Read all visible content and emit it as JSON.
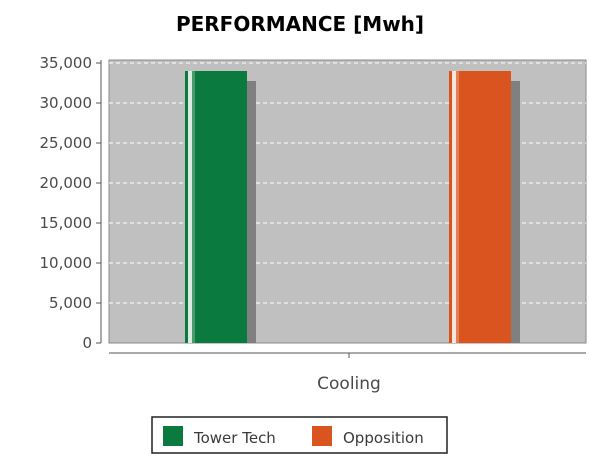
{
  "chart_data": {
    "type": "bar",
    "title": "PERFORMANCE [Mwh]",
    "xlabel": "",
    "ylabel": "",
    "categories": [
      "Cooling"
    ],
    "series": [
      {
        "name": "Tower Tech",
        "values": [
          34000
        ],
        "color": "#0a7a3e"
      },
      {
        "name": "Opposition",
        "values": [
          34000
        ],
        "color": "#d9541e"
      }
    ],
    "ylim": [
      0,
      35000
    ],
    "yticks": [
      0,
      5000,
      10000,
      15000,
      20000,
      25000,
      30000,
      35000
    ],
    "ytick_labels": [
      "0",
      "5,000",
      "10,000",
      "15,000",
      "20,000",
      "25,000",
      "30,000",
      "35,000"
    ],
    "grid": true,
    "legend_position": "bottom-center",
    "plot_background": "#c0c0c0"
  }
}
